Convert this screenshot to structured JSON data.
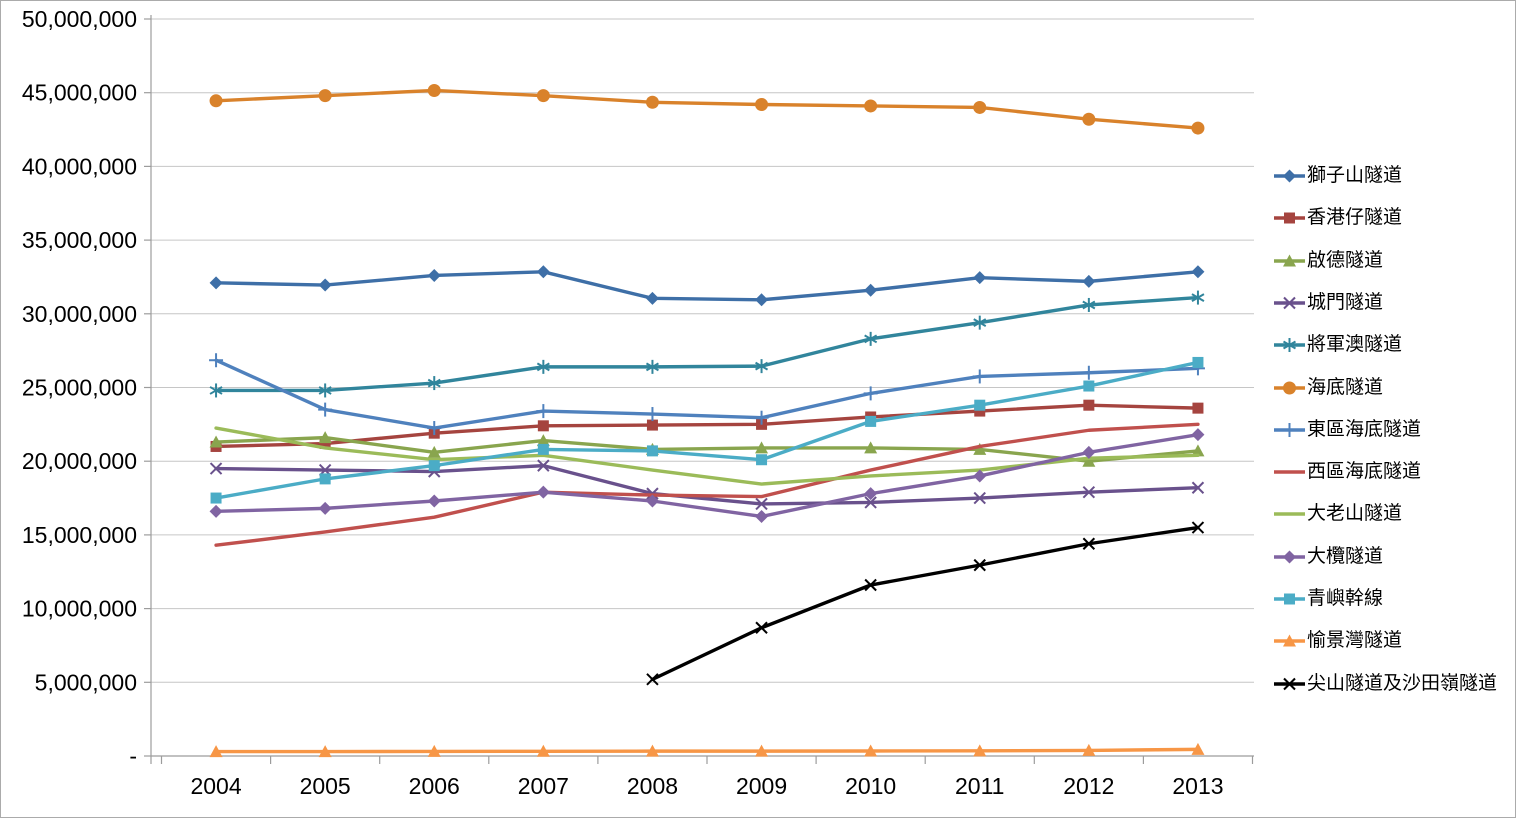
{
  "window": {
    "title": "Hong Kong tunnels annual traffic line chart",
    "background": "#FFFFFF",
    "frame_border_color": "#ABABAB"
  },
  "style": {
    "axis_color": "#9C9C9C",
    "gridline_color": "#C6C6C6",
    "text_color": "#000000",
    "plot_background": "#FFFFFF"
  },
  "chart_data": {
    "type": "line",
    "title": "",
    "xlabel": "",
    "ylabel": "",
    "grid": true,
    "legend_position": "right",
    "ylim": [
      0,
      50000000
    ],
    "y_tick_interval": 5000000,
    "y_tick_labels": [
      "-",
      "5,000,000",
      "10,000,000",
      "15,000,000",
      "20,000,000",
      "25,000,000",
      "30,000,000",
      "35,000,000",
      "40,000,000",
      "45,000,000",
      "50,000,000"
    ],
    "categories": [
      "2004",
      "2005",
      "2006",
      "2007",
      "2008",
      "2009",
      "2010",
      "2011",
      "2012",
      "2013"
    ],
    "series": [
      {
        "name": "獅子山隧道",
        "color": "#3E6FA7",
        "marker": "diamond",
        "values": [
          32100000,
          31950000,
          32600000,
          32850000,
          31050000,
          30950000,
          31600000,
          32450000,
          32200000,
          32850000
        ]
      },
      {
        "name": "香港仔隧道",
        "color": "#A5443F",
        "marker": "square",
        "values": [
          21000000,
          21200000,
          21900000,
          22400000,
          22450000,
          22500000,
          23000000,
          23400000,
          23800000,
          23600000
        ]
      },
      {
        "name": "啟德隧道",
        "color": "#89A54E",
        "marker": "triangle",
        "values": [
          21300000,
          21600000,
          20600000,
          21400000,
          20800000,
          20900000,
          20900000,
          20800000,
          20000000,
          20700000
        ]
      },
      {
        "name": "城門隧道",
        "color": "#69518C",
        "marker": "x",
        "values": [
          19500000,
          19400000,
          19300000,
          19700000,
          17800000,
          17100000,
          17200000,
          17500000,
          17900000,
          18200000
        ]
      },
      {
        "name": "將軍澳隧道",
        "color": "#31859C",
        "marker": "asterisk",
        "values": [
          24800000,
          24800000,
          25300000,
          26400000,
          26400000,
          26450000,
          28300000,
          29400000,
          30600000,
          31100000
        ]
      },
      {
        "name": "海底隧道",
        "color": "#D9822B",
        "marker": "circle",
        "values": [
          44450000,
          44800000,
          45150000,
          44800000,
          44350000,
          44200000,
          44100000,
          44000000,
          43200000,
          42600000
        ]
      },
      {
        "name": "東區海底隧道",
        "color": "#4F81BD",
        "marker": "plus",
        "values": [
          26850000,
          23500000,
          22250000,
          23400000,
          23200000,
          22950000,
          24600000,
          25750000,
          26000000,
          26300000
        ]
      },
      {
        "name": "西區海底隧道",
        "color": "#C0504D",
        "marker": "none",
        "values": [
          14300000,
          15200000,
          16200000,
          17900000,
          17700000,
          17600000,
          19400000,
          21000000,
          22100000,
          22500000
        ]
      },
      {
        "name": "大老山隧道",
        "color": "#9BBB59",
        "marker": "none",
        "values": [
          22250000,
          20900000,
          20100000,
          20400000,
          19400000,
          18450000,
          19000000,
          19400000,
          20200000,
          20400000
        ]
      },
      {
        "name": "大欖隧道",
        "color": "#8064A2",
        "marker": "diamond",
        "values": [
          16600000,
          16800000,
          17300000,
          17900000,
          17300000,
          16250000,
          17800000,
          19000000,
          20600000,
          21800000
        ]
      },
      {
        "name": "青嶼幹線",
        "color": "#4BACC6",
        "marker": "square",
        "values": [
          17500000,
          18800000,
          19700000,
          20800000,
          20700000,
          20100000,
          22700000,
          23800000,
          25100000,
          26700000
        ]
      },
      {
        "name": "愉景灣隧道",
        "color": "#F79646",
        "marker": "triangle",
        "values": [
          300000,
          300000,
          310000,
          320000,
          330000,
          330000,
          340000,
          350000,
          380000,
          450000
        ]
      },
      {
        "name": "尖山隧道及沙田嶺隧道",
        "color": "#000000",
        "marker": "x",
        "values": [
          null,
          null,
          null,
          null,
          5200000,
          8700000,
          11600000,
          12950000,
          14400000,
          15500000
        ]
      }
    ]
  }
}
